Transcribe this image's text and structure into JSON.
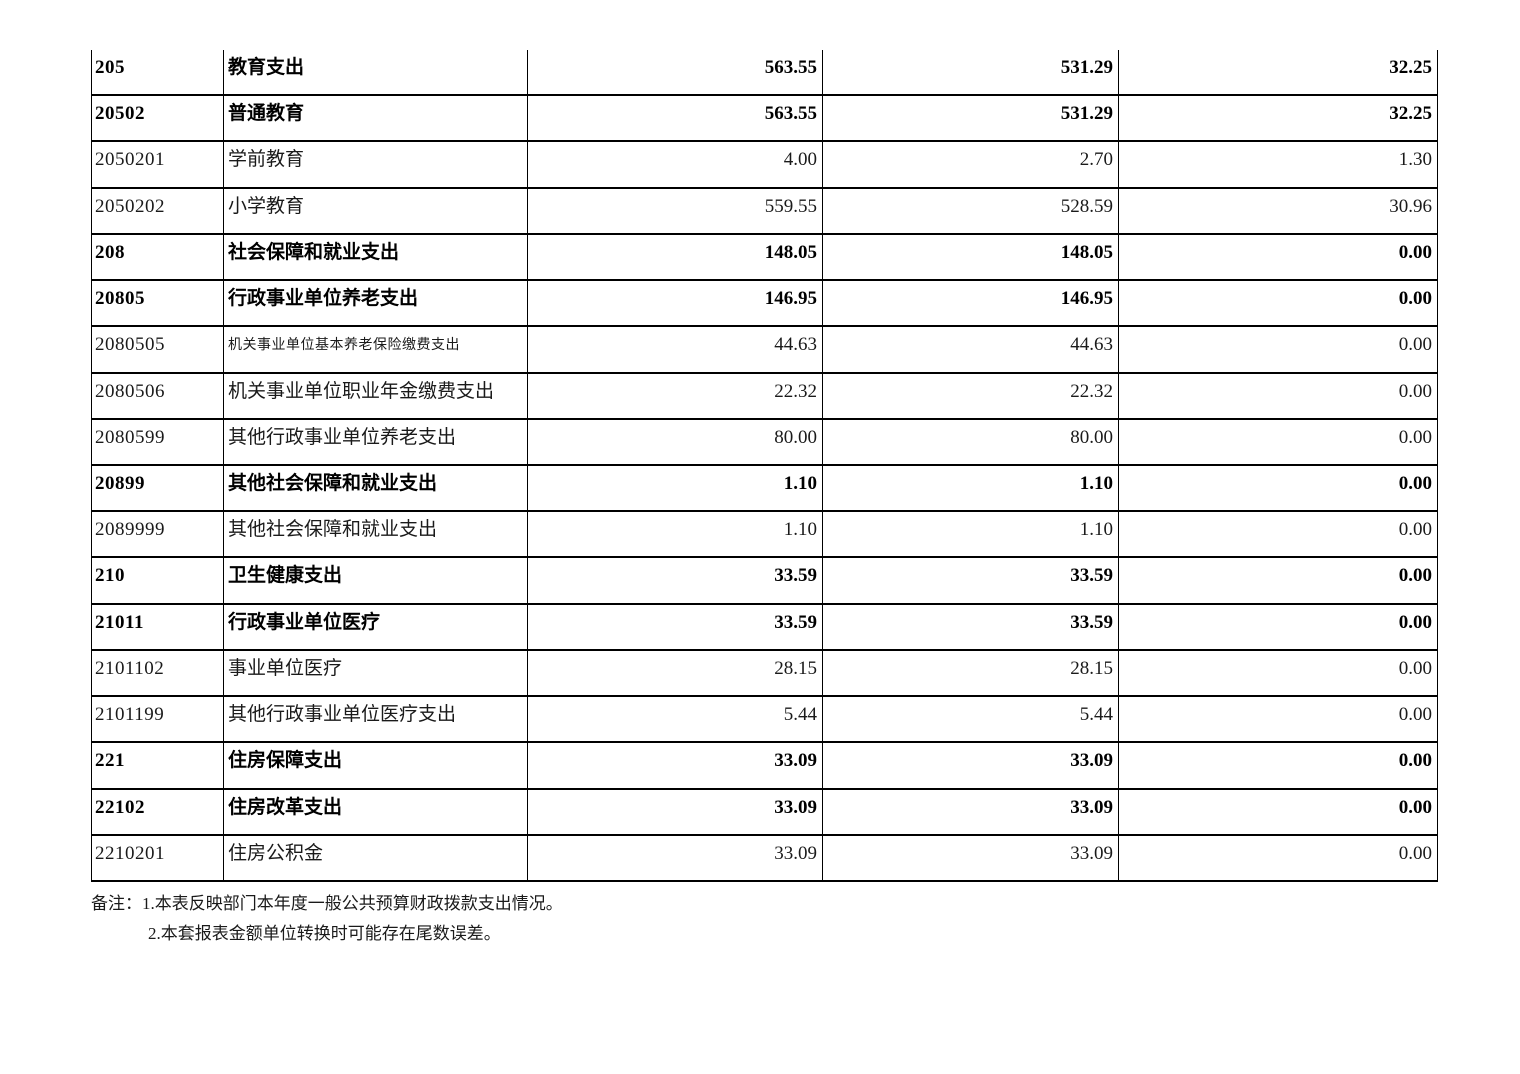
{
  "colors": {
    "background": "#ffffff",
    "border": "#000000",
    "text": "#1a1a1a",
    "bold_text": "#000000"
  },
  "table": {
    "column_semantics": [
      "code",
      "name",
      "amount_total",
      "amount_basic",
      "amount_project"
    ],
    "rows": [
      {
        "code": "205",
        "name": "教育支出",
        "values": [
          "563.55",
          "531.29",
          "32.25"
        ],
        "bold": true,
        "small": false
      },
      {
        "code": "20502",
        "name": "普通教育",
        "values": [
          "563.55",
          "531.29",
          "32.25"
        ],
        "bold": true,
        "small": false
      },
      {
        "code": "2050201",
        "name": "学前教育",
        "values": [
          "4.00",
          "2.70",
          "1.30"
        ],
        "bold": false,
        "small": false
      },
      {
        "code": "2050202",
        "name": "小学教育",
        "values": [
          "559.55",
          "528.59",
          "30.96"
        ],
        "bold": false,
        "small": false
      },
      {
        "code": "208",
        "name": "社会保障和就业支出",
        "values": [
          "148.05",
          "148.05",
          "0.00"
        ],
        "bold": true,
        "small": false
      },
      {
        "code": "20805",
        "name": "行政事业单位养老支出",
        "values": [
          "146.95",
          "146.95",
          "0.00"
        ],
        "bold": true,
        "small": false
      },
      {
        "code": "2080505",
        "name": "机关事业单位基本养老保险缴费支出",
        "values": [
          "44.63",
          "44.63",
          "0.00"
        ],
        "bold": false,
        "small": true
      },
      {
        "code": "2080506",
        "name": "机关事业单位职业年金缴费支出",
        "values": [
          "22.32",
          "22.32",
          "0.00"
        ],
        "bold": false,
        "small": false
      },
      {
        "code": "2080599",
        "name": "其他行政事业单位养老支出",
        "values": [
          "80.00",
          "80.00",
          "0.00"
        ],
        "bold": false,
        "small": false
      },
      {
        "code": "20899",
        "name": "其他社会保障和就业支出",
        "values": [
          "1.10",
          "1.10",
          "0.00"
        ],
        "bold": true,
        "small": false
      },
      {
        "code": "2089999",
        "name": "其他社会保障和就业支出",
        "values": [
          "1.10",
          "1.10",
          "0.00"
        ],
        "bold": false,
        "small": false
      },
      {
        "code": "210",
        "name": "卫生健康支出",
        "values": [
          "33.59",
          "33.59",
          "0.00"
        ],
        "bold": true,
        "small": false
      },
      {
        "code": "21011",
        "name": "行政事业单位医疗",
        "values": [
          "33.59",
          "33.59",
          "0.00"
        ],
        "bold": true,
        "small": false
      },
      {
        "code": "2101102",
        "name": "事业单位医疗",
        "values": [
          "28.15",
          "28.15",
          "0.00"
        ],
        "bold": false,
        "small": false
      },
      {
        "code": "2101199",
        "name": "其他行政事业单位医疗支出",
        "values": [
          "5.44",
          "5.44",
          "0.00"
        ],
        "bold": false,
        "small": false
      },
      {
        "code": "221",
        "name": "住房保障支出",
        "values": [
          "33.09",
          "33.09",
          "0.00"
        ],
        "bold": true,
        "small": false
      },
      {
        "code": "22102",
        "name": "住房改革支出",
        "values": [
          "33.09",
          "33.09",
          "0.00"
        ],
        "bold": true,
        "small": false
      },
      {
        "code": "2210201",
        "name": "住房公积金",
        "values": [
          "33.09",
          "33.09",
          "0.00"
        ],
        "bold": false,
        "small": false
      }
    ]
  },
  "notes": {
    "line1": "备注：1.本表反映部门本年度一般公共预算财政拨款支出情况。",
    "line2": "2.本套报表金额单位转换时可能存在尾数误差。"
  }
}
